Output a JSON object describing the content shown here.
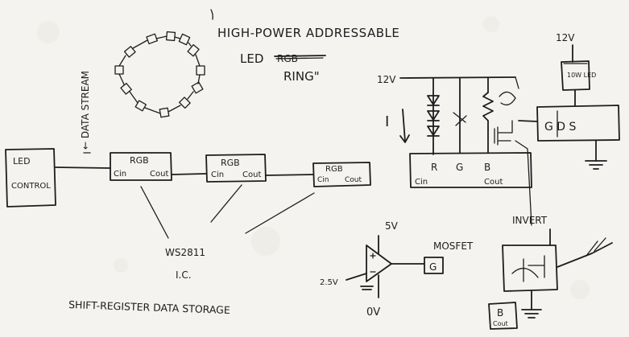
{
  "colors": {
    "paper": "#f4f3ef",
    "ink": "#1d1d1f"
  },
  "title": {
    "line1": "HIGH-POWER ADDRESSABLE",
    "line2": "LED",
    "struck": "RGB",
    "line3": "RING\""
  },
  "led_control": {
    "line1": "LED",
    "line2": "CONTROL"
  },
  "data_stream_label": "← DATA STREAM",
  "chips": [
    {
      "rgb": "RGB",
      "cin": "Cin",
      "cout": "Cout"
    },
    {
      "rgb": "RGB",
      "cin": "Cin",
      "cout": "Cout"
    },
    {
      "rgb": "RGB",
      "cin": "Cin",
      "cout": "Cout"
    }
  ],
  "ws2811": {
    "line1": "WS2811",
    "line2": "I.C."
  },
  "shift_register_label": "SHIFT-REGISTER DATA STORAGE",
  "driver": {
    "supply": "12V",
    "current": "I",
    "chip": {
      "r": "R",
      "g": "G",
      "b": "B",
      "cin": "Cin",
      "cout": "Cout"
    }
  },
  "power_led": {
    "supply": "12V",
    "label": "10W LED",
    "gds": "G D S"
  },
  "comparator": {
    "top": "5V",
    "input": "2.5V",
    "bottom": "0V",
    "output": "G"
  },
  "mosfet_label": "MOSFET",
  "invert": {
    "label": "INVERT",
    "b": "B",
    "cout": "Cout"
  }
}
